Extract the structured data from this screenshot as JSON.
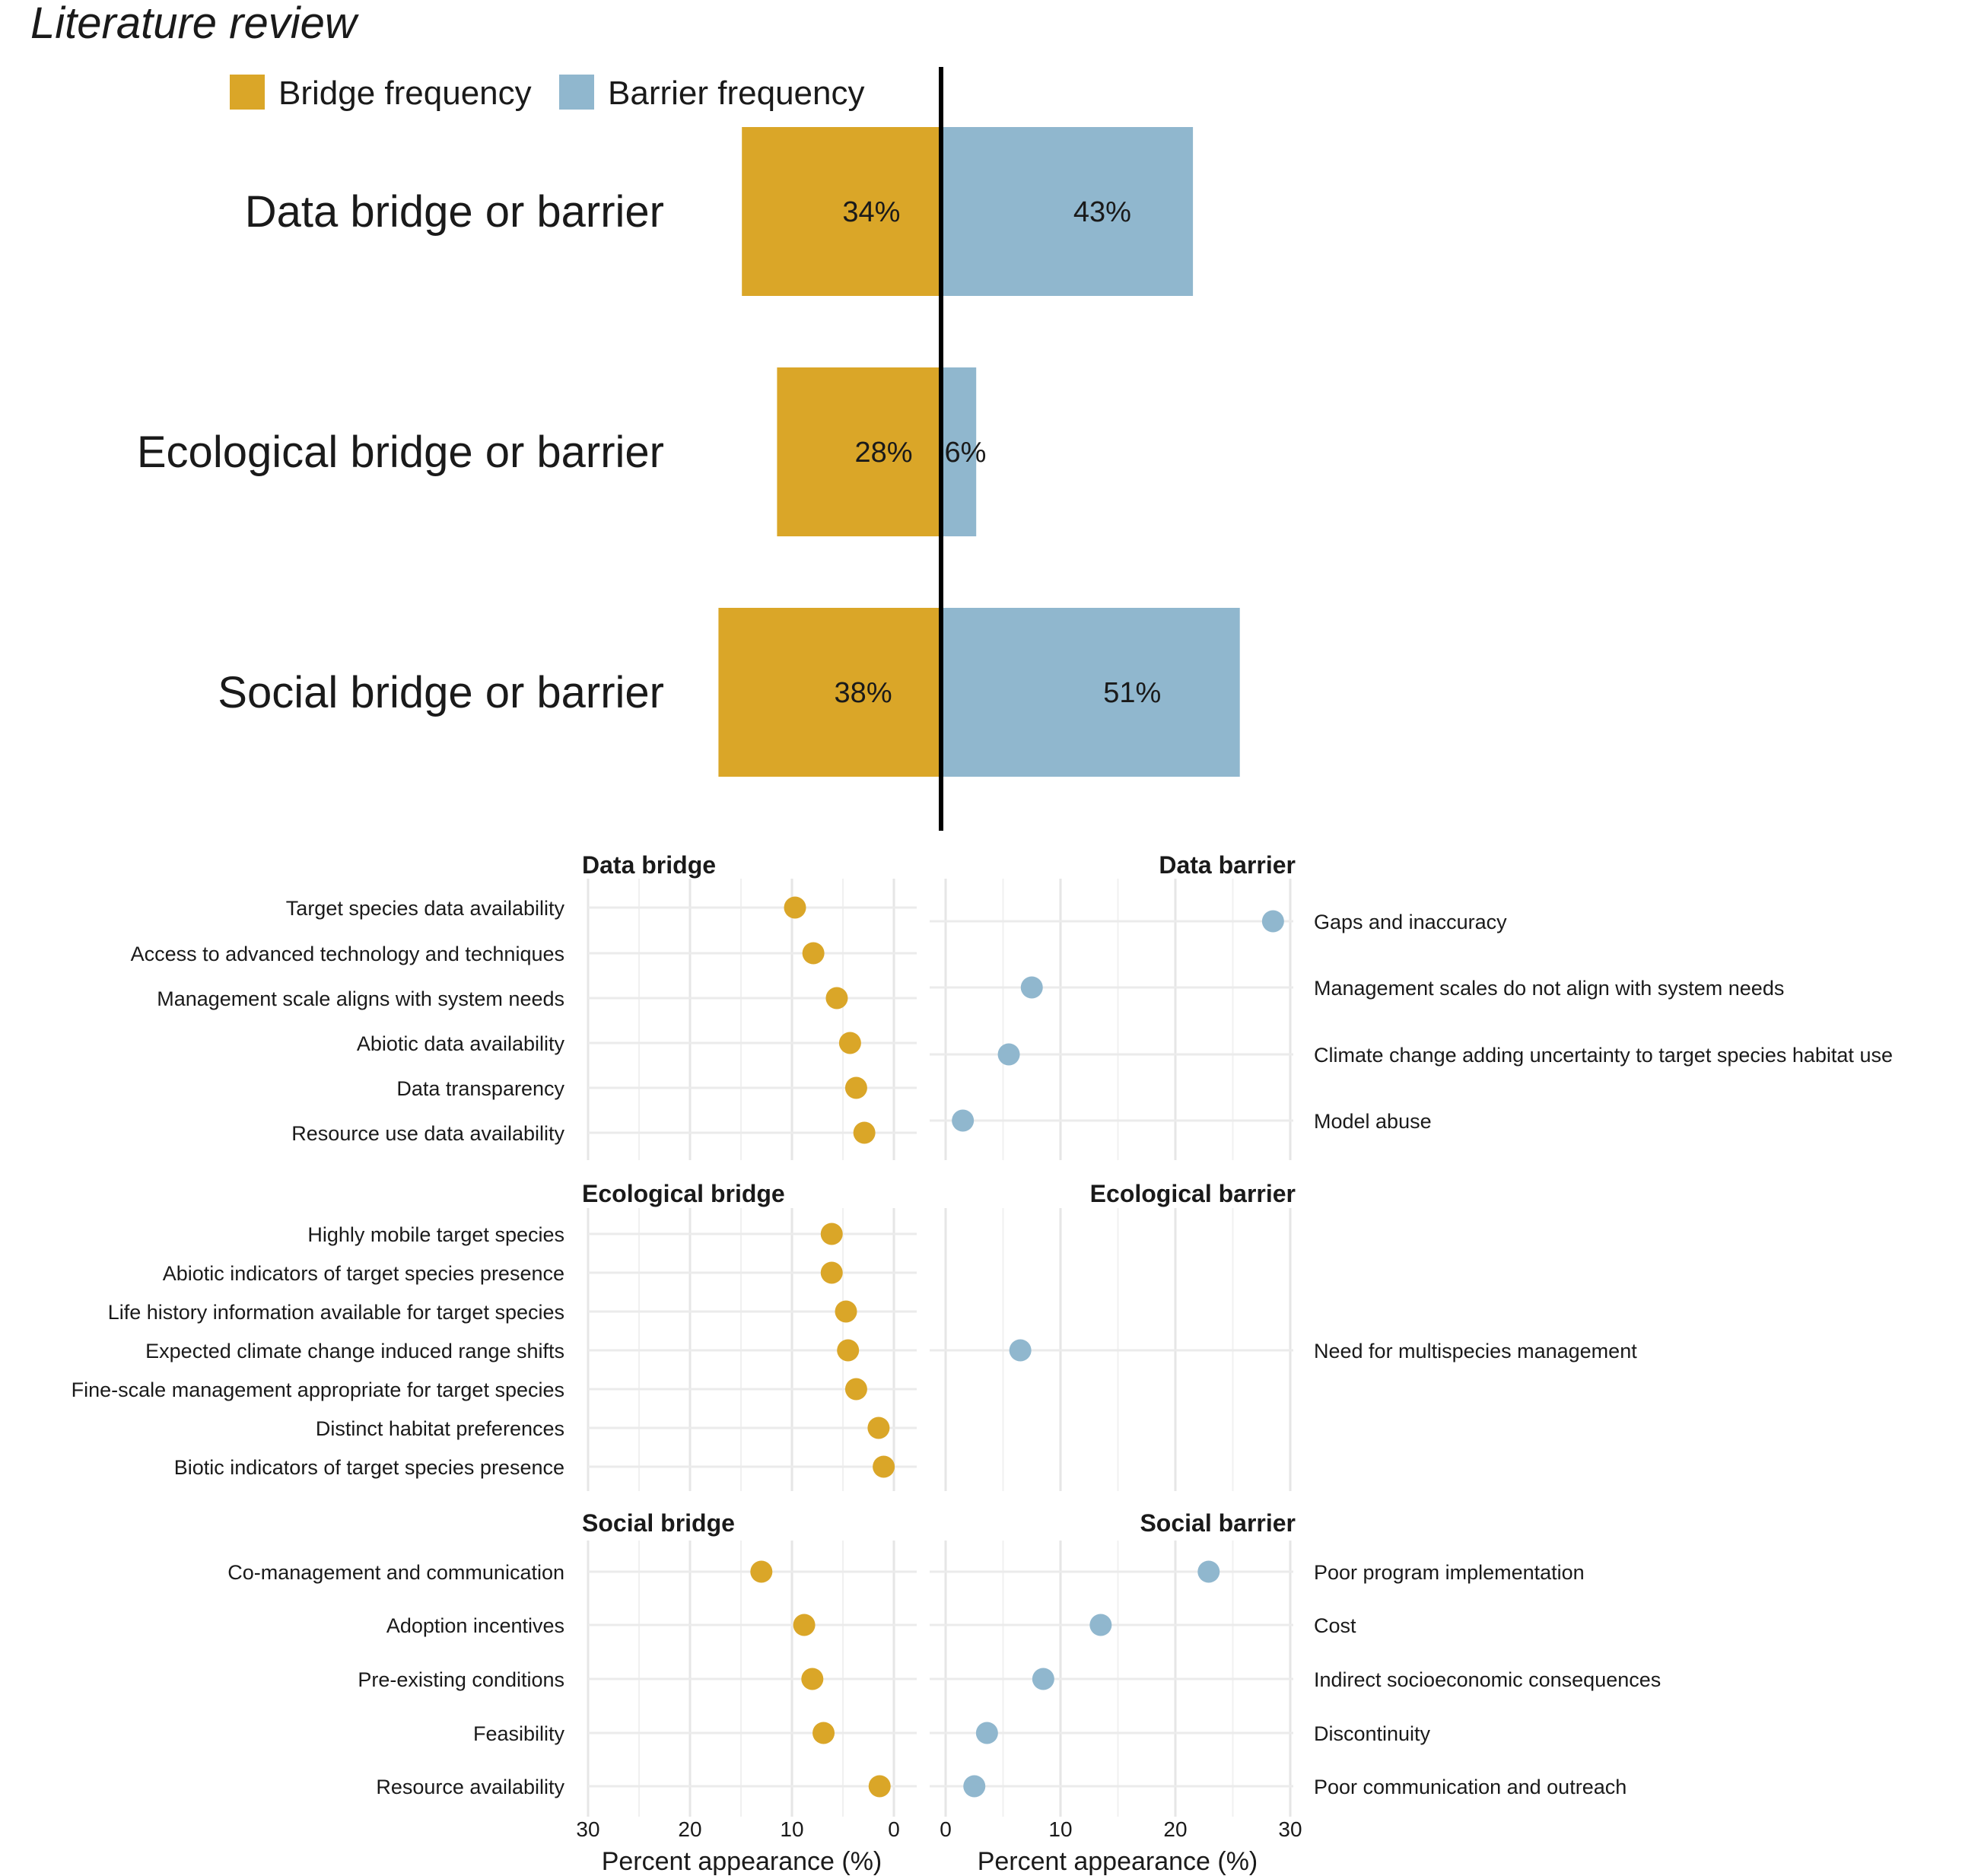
{
  "title": "Literature review",
  "legend": [
    {
      "label": "Bridge frequency",
      "color": "#DAA628"
    },
    {
      "label": "Barrier frequency",
      "color": "#90B7CE"
    }
  ],
  "colors": {
    "bridge": "#DAA628",
    "barrier": "#90B7CE",
    "divider": "#000000"
  },
  "chart_data": [
    {
      "type": "bar",
      "orientation": "horizontal-diverging",
      "title": "Literature review",
      "categories": [
        "Data bridge or barrier",
        "Ecological bridge or barrier",
        "Social bridge or barrier"
      ],
      "series": [
        {
          "name": "Bridge frequency",
          "values": [
            34,
            28,
            38
          ],
          "labels": [
            "34%",
            "28%",
            "38%"
          ]
        },
        {
          "name": "Barrier frequency",
          "values": [
            43,
            6,
            51
          ],
          "labels": [
            "43%",
            "6%",
            "51%"
          ]
        }
      ]
    },
    {
      "type": "scatter",
      "panels": [
        {
          "title": "Data bridge",
          "side": "bridge",
          "items": [
            "Target species data availability",
            "Access to advanced technology and techniques",
            "Management scale aligns with system needs",
            "Abiotic data availability",
            "Data transparency",
            "Resource use data availability"
          ],
          "values": [
            9.7,
            7.9,
            5.6,
            4.3,
            3.7,
            2.9
          ]
        },
        {
          "title": "Data barrier",
          "side": "barrier",
          "items": [
            "Gaps and inaccuracy",
            "Management scales do not align with system needs",
            "Climate change adding uncertainty to target species habitat use",
            "Model abuse"
          ],
          "values": [
            28.5,
            7.5,
            5.5,
            1.5
          ]
        },
        {
          "title": "Ecological bridge",
          "side": "bridge",
          "items": [
            "Highly mobile target species",
            "Abiotic indicators of target species presence",
            "Life history information available for target species",
            "Expected climate change induced range shifts",
            "Fine-scale management appropriate for target species",
            "Distinct habitat preferences",
            "Biotic indicators of target species presence"
          ],
          "values": [
            6.1,
            6.1,
            4.7,
            4.5,
            3.7,
            1.5,
            1.0
          ]
        },
        {
          "title": "Ecological barrier",
          "side": "barrier",
          "items": [
            "Need for multispecies management"
          ],
          "values": [
            6.5
          ]
        },
        {
          "title": "Social bridge",
          "side": "bridge",
          "items": [
            "Co-management and communication",
            "Adoption incentives",
            "Pre-existing conditions",
            "Feasibility",
            "Resource availability"
          ],
          "values": [
            13.0,
            8.8,
            8.0,
            6.9,
            1.4
          ]
        },
        {
          "title": "Social barrier",
          "side": "barrier",
          "items": [
            "Poor program implementation",
            "Cost",
            "Indirect socioeconomic consequences",
            "Discontinuity",
            "Poor communication and outreach"
          ],
          "values": [
            22.9,
            13.5,
            8.5,
            3.6,
            2.5
          ]
        }
      ],
      "bridge_axis": {
        "ticks": [
          30,
          20,
          10,
          0
        ],
        "tick_labels": [
          "30",
          "20",
          "10",
          "0"
        ],
        "xlim": [
          30,
          0
        ],
        "xlabel": "Percent appearance (%)"
      },
      "barrier_axis": {
        "ticks": [
          0,
          10,
          20,
          30
        ],
        "tick_labels": [
          "0",
          "10",
          "20",
          "30"
        ],
        "xlim": [
          0,
          30
        ],
        "xlabel": "Percent appearance (%)"
      }
    }
  ]
}
